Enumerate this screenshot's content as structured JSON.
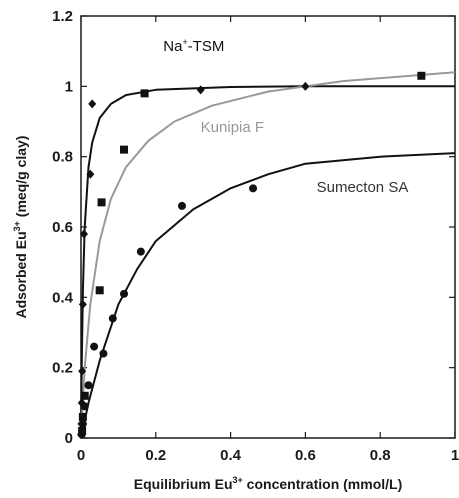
{
  "chart_data": {
    "type": "scatter",
    "xlabel_parts": [
      "Equilibrium Eu",
      "3+",
      " concentration (mmol/L)"
    ],
    "ylabel_parts": [
      "Adsorbed Eu",
      "3+",
      " (meq/g clay)"
    ],
    "xlim": [
      0,
      1
    ],
    "ylim": [
      0,
      1.2
    ],
    "xticks": [
      0,
      0.2,
      0.4,
      0.6,
      0.8,
      1
    ],
    "yticks": [
      0,
      0.2,
      0.4,
      0.6,
      0.8,
      1,
      1.2
    ],
    "xtick_labels": [
      "0",
      "0.2",
      "0.4",
      "0.6",
      "0.8",
      "1"
    ],
    "ytick_labels": [
      "0",
      "0.2",
      "0.4",
      "0.6",
      "0.8",
      "1",
      "1.2"
    ],
    "grid": false,
    "series": [
      {
        "name_parts": [
          "Na",
          "+",
          "-TSM"
        ],
        "marker": "diamond",
        "color": "#111111",
        "points": [
          [
            0.0,
            0.01
          ],
          [
            0.001,
            0.04
          ],
          [
            0.002,
            0.1
          ],
          [
            0.003,
            0.19
          ],
          [
            0.005,
            0.38
          ],
          [
            0.008,
            0.58
          ],
          [
            0.025,
            0.75
          ],
          [
            0.03,
            0.95
          ],
          [
            0.32,
            0.99
          ],
          [
            0.6,
            1.0
          ]
        ],
        "curve": [
          [
            0.0,
            0.0
          ],
          [
            0.002,
            0.2
          ],
          [
            0.005,
            0.42
          ],
          [
            0.01,
            0.6
          ],
          [
            0.02,
            0.77
          ],
          [
            0.03,
            0.84
          ],
          [
            0.05,
            0.91
          ],
          [
            0.08,
            0.95
          ],
          [
            0.12,
            0.975
          ],
          [
            0.2,
            0.99
          ],
          [
            0.4,
            0.998
          ],
          [
            0.6,
            1.0
          ],
          [
            1.0,
            1.0
          ]
        ]
      },
      {
        "name_parts": [
          "Kunipia F"
        ],
        "marker": "square",
        "color": "#999999",
        "points": [
          [
            0.003,
            0.02
          ],
          [
            0.005,
            0.06
          ],
          [
            0.01,
            0.12
          ],
          [
            0.05,
            0.42
          ],
          [
            0.055,
            0.67
          ],
          [
            0.115,
            0.82
          ],
          [
            0.17,
            0.98
          ],
          [
            0.91,
            1.03
          ]
        ],
        "curve": [
          [
            0.0,
            0.0
          ],
          [
            0.01,
            0.2
          ],
          [
            0.025,
            0.38
          ],
          [
            0.05,
            0.56
          ],
          [
            0.08,
            0.68
          ],
          [
            0.12,
            0.77
          ],
          [
            0.18,
            0.845
          ],
          [
            0.25,
            0.9
          ],
          [
            0.35,
            0.945
          ],
          [
            0.5,
            0.985
          ],
          [
            0.7,
            1.015
          ],
          [
            1.0,
            1.04
          ]
        ]
      },
      {
        "name_parts": [
          "Sumecton SA"
        ],
        "marker": "circle",
        "color": "#111111",
        "points": [
          [
            0.002,
            0.01
          ],
          [
            0.005,
            0.04
          ],
          [
            0.01,
            0.09
          ],
          [
            0.02,
            0.15
          ],
          [
            0.035,
            0.26
          ],
          [
            0.06,
            0.24
          ],
          [
            0.085,
            0.34
          ],
          [
            0.115,
            0.41
          ],
          [
            0.16,
            0.53
          ],
          [
            0.27,
            0.66
          ],
          [
            0.46,
            0.71
          ]
        ],
        "curve": [
          [
            0.0,
            0.0
          ],
          [
            0.02,
            0.1
          ],
          [
            0.05,
            0.22
          ],
          [
            0.1,
            0.38
          ],
          [
            0.15,
            0.48
          ],
          [
            0.2,
            0.56
          ],
          [
            0.3,
            0.65
          ],
          [
            0.4,
            0.71
          ],
          [
            0.5,
            0.75
          ],
          [
            0.6,
            0.78
          ],
          [
            0.8,
            0.8
          ],
          [
            1.0,
            0.81
          ]
        ]
      }
    ],
    "annotations": [
      {
        "text_parts": [
          "Na",
          "+",
          "-TSM"
        ],
        "color": "#111111",
        "at": [
          0.22,
          1.1
        ]
      },
      {
        "text_parts": [
          "Kunipia F"
        ],
        "color": "#999999",
        "at": [
          0.32,
          0.87
        ]
      },
      {
        "text_parts": [
          "Sumecton SA"
        ],
        "color": "#333333",
        "at": [
          0.63,
          0.7
        ]
      }
    ]
  }
}
